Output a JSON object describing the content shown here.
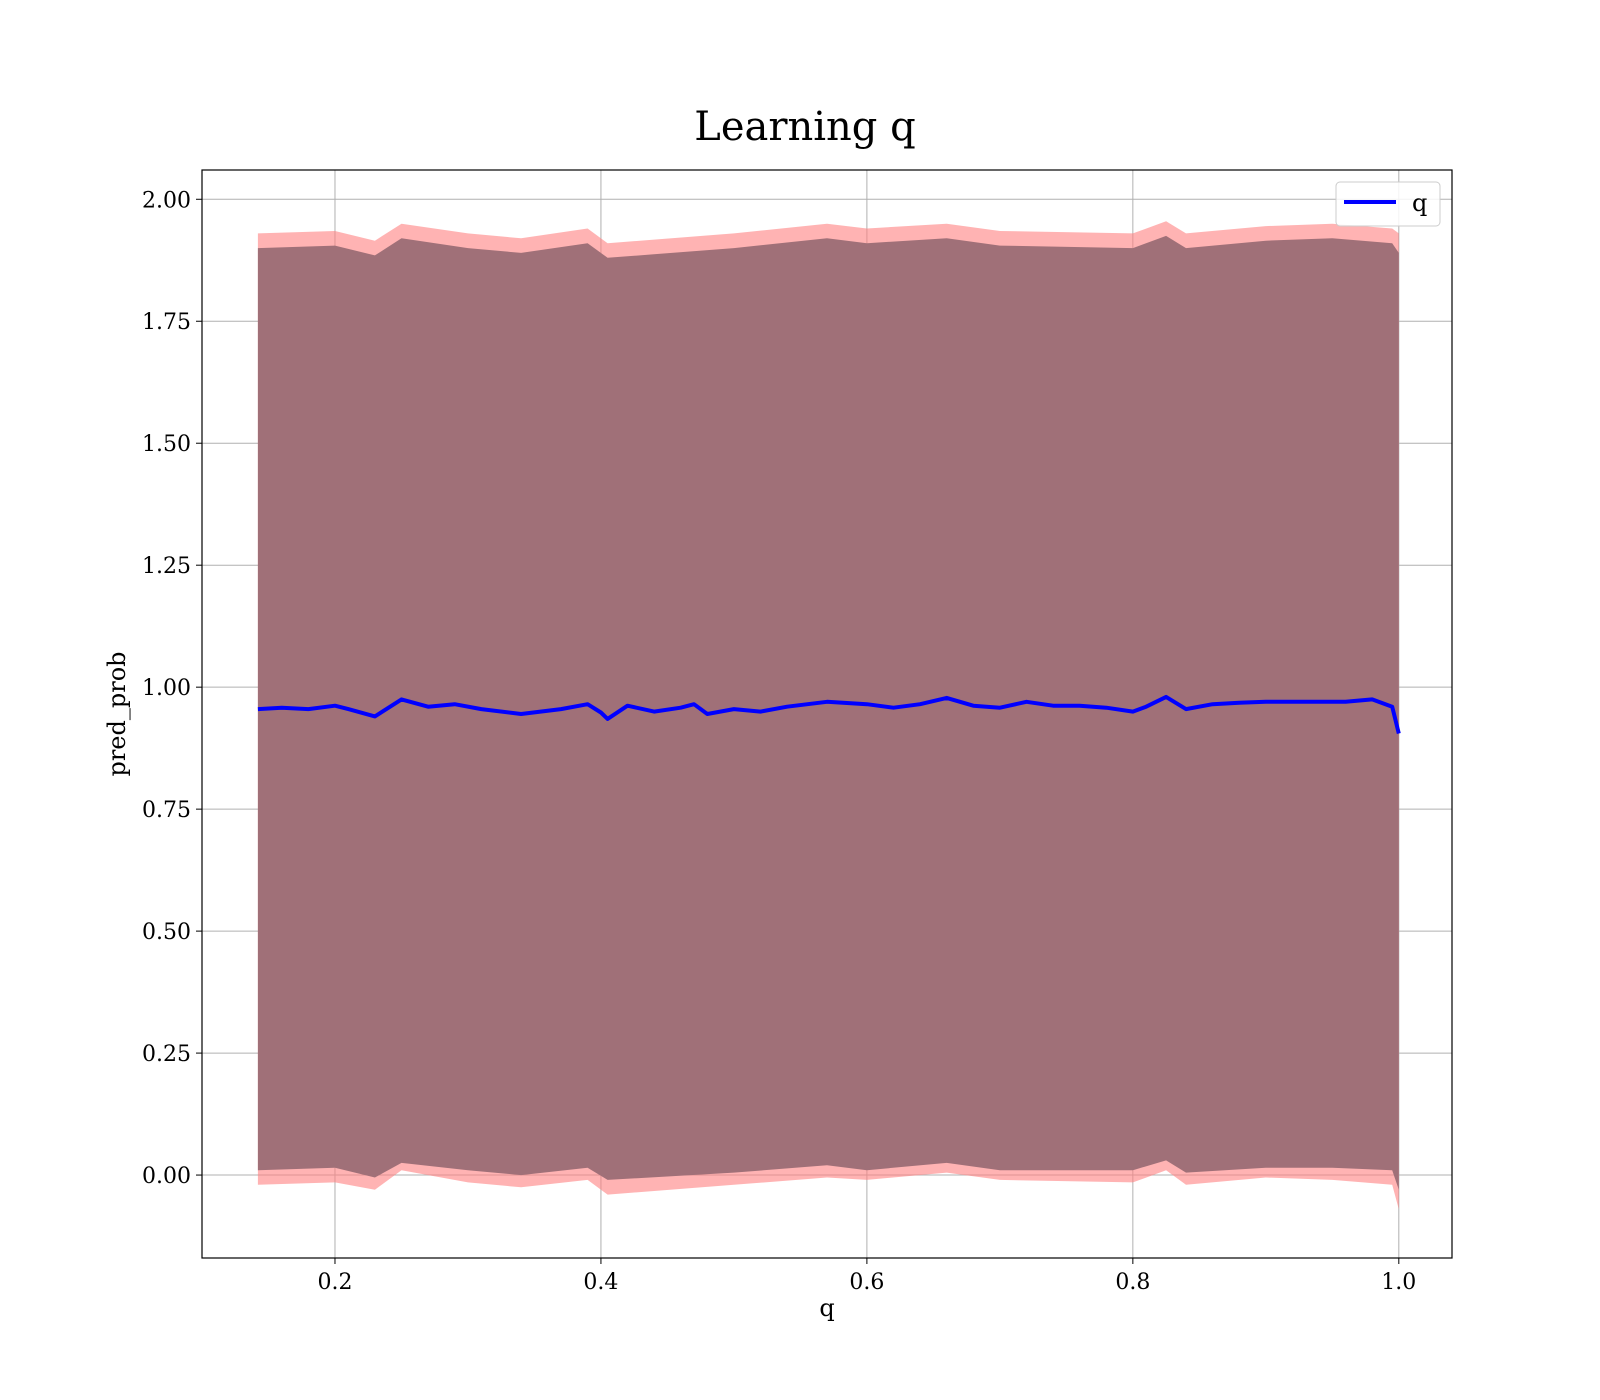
{
  "chart_data": {
    "type": "line",
    "title": "Learning q",
    "xlabel": "q",
    "ylabel": "pred_prob",
    "xlim": [
      0.1,
      1.04
    ],
    "ylim": [
      -0.17,
      2.06
    ],
    "xticks": [
      0.2,
      0.4,
      0.6,
      0.8,
      1.0
    ],
    "xtick_labels": [
      "0.2",
      "0.4",
      "0.6",
      "0.8",
      "1.0"
    ],
    "yticks": [
      0.0,
      0.25,
      0.5,
      0.75,
      1.0,
      1.25,
      1.5,
      1.75,
      2.0
    ],
    "ytick_labels": [
      "0.00",
      "0.25",
      "0.50",
      "0.75",
      "1.00",
      "1.25",
      "1.50",
      "1.75",
      "2.00"
    ],
    "grid": true,
    "legend_position": "top-right",
    "series": [
      {
        "name": "q",
        "color": "#0000ff",
        "x": [
          0.142,
          0.16,
          0.18,
          0.2,
          0.21,
          0.23,
          0.25,
          0.27,
          0.29,
          0.31,
          0.34,
          0.37,
          0.39,
          0.4,
          0.405,
          0.42,
          0.44,
          0.46,
          0.47,
          0.48,
          0.5,
          0.52,
          0.54,
          0.57,
          0.6,
          0.62,
          0.64,
          0.66,
          0.68,
          0.7,
          0.72,
          0.74,
          0.76,
          0.78,
          0.8,
          0.81,
          0.825,
          0.84,
          0.86,
          0.88,
          0.9,
          0.92,
          0.94,
          0.96,
          0.98,
          0.995,
          1.0
        ],
        "y": [
          0.955,
          0.958,
          0.955,
          0.962,
          0.955,
          0.94,
          0.975,
          0.96,
          0.965,
          0.955,
          0.945,
          0.955,
          0.965,
          0.948,
          0.935,
          0.962,
          0.95,
          0.958,
          0.965,
          0.945,
          0.955,
          0.95,
          0.96,
          0.97,
          0.965,
          0.958,
          0.965,
          0.978,
          0.962,
          0.958,
          0.97,
          0.962,
          0.962,
          0.958,
          0.95,
          0.96,
          0.98,
          0.955,
          0.965,
          0.968,
          0.97,
          0.97,
          0.97,
          0.97,
          0.975,
          0.96,
          0.905
        ]
      }
    ],
    "bands": [
      {
        "color": "#ff8080",
        "opacity": 0.6,
        "x": [
          0.142,
          0.2,
          0.23,
          0.25,
          0.3,
          0.34,
          0.39,
          0.405,
          0.5,
          0.57,
          0.6,
          0.66,
          0.7,
          0.8,
          0.825,
          0.84,
          0.9,
          0.95,
          0.995,
          1.0
        ],
        "lower": [
          -0.02,
          -0.015,
          -0.03,
          0.01,
          -0.015,
          -0.025,
          -0.01,
          -0.04,
          -0.02,
          -0.005,
          -0.01,
          0.005,
          -0.01,
          -0.015,
          0.01,
          -0.02,
          -0.005,
          -0.01,
          -0.02,
          -0.07
        ],
        "upper": [
          1.93,
          1.935,
          1.915,
          1.95,
          1.93,
          1.92,
          1.94,
          1.91,
          1.93,
          1.95,
          1.94,
          1.95,
          1.935,
          1.93,
          1.955,
          1.93,
          1.945,
          1.95,
          1.94,
          1.93
        ]
      },
      {
        "color": "#a07078",
        "opacity": 1.0,
        "x": [
          0.142,
          0.2,
          0.23,
          0.25,
          0.3,
          0.34,
          0.39,
          0.405,
          0.5,
          0.57,
          0.6,
          0.66,
          0.7,
          0.8,
          0.825,
          0.84,
          0.9,
          0.95,
          0.995,
          1.0
        ],
        "lower": [
          0.01,
          0.015,
          -0.005,
          0.025,
          0.01,
          0.0,
          0.015,
          -0.01,
          0.005,
          0.02,
          0.01,
          0.025,
          0.01,
          0.01,
          0.03,
          0.005,
          0.015,
          0.015,
          0.01,
          -0.03
        ],
        "upper": [
          1.9,
          1.905,
          1.885,
          1.92,
          1.9,
          1.89,
          1.91,
          1.88,
          1.9,
          1.92,
          1.91,
          1.92,
          1.905,
          1.9,
          1.925,
          1.9,
          1.915,
          1.92,
          1.91,
          1.89
        ]
      }
    ]
  }
}
